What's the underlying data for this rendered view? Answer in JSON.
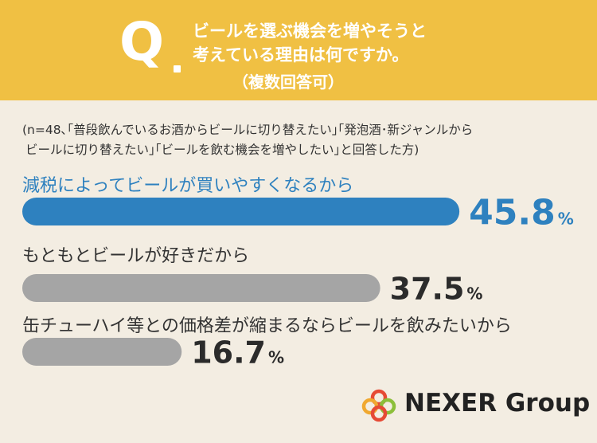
{
  "question": {
    "mark": "Q",
    "lines": [
      "ビールを選ぶ機会を増やそうと",
      "考えている理由は何ですか。",
      "（複数回答可）"
    ]
  },
  "sample_note": [
    "(n=48､｢普段飲んでいるお酒からビールに切り替えたい｣｢発泡酒･新ジャンルから",
    "ビールに切り替えたい｣｢ビールを飲む機会を増やしたい｣と回答した方)"
  ],
  "chart_data": {
    "type": "bar",
    "orientation": "horizontal",
    "categories": [
      "減税によってビールが買いやすくなるから",
      "もともとビールが好きだから",
      "缶チューハイ等との価格差が縮まるならビールを飲みたいから"
    ],
    "values": [
      45.8,
      37.5,
      16.7
    ],
    "value_labels": [
      "45.8",
      "37.5",
      "16.7"
    ],
    "unit": "%",
    "highlight_color": "#2e81bf",
    "base_color": "#a5a5a5",
    "label_highlight_color": "#2e81bf",
    "value_highlight_color": "#2e81bf",
    "value_color": "#2b2b2b"
  },
  "logo": {
    "text": "NEXER Group",
    "colors": [
      "#e64a35",
      "#f0a830",
      "#8cbf3a",
      "#e64a35"
    ]
  }
}
